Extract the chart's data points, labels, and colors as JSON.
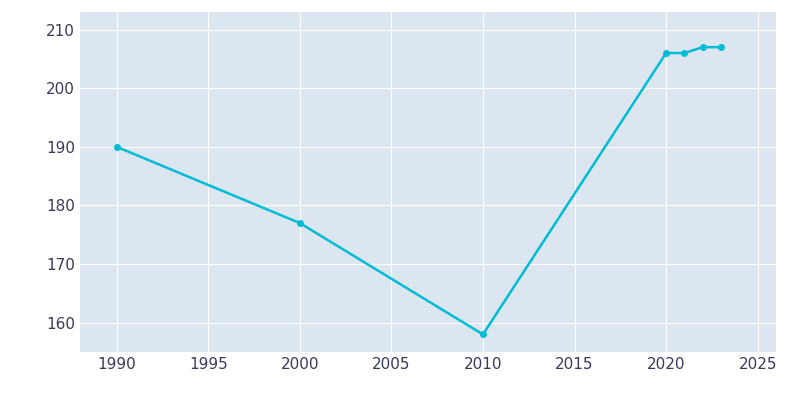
{
  "years": [
    1990,
    2000,
    2010,
    2020,
    2021,
    2022,
    2023
  ],
  "population": [
    190,
    177,
    158,
    206,
    206,
    207,
    207
  ],
  "line_color": "#00BCD4",
  "marker": "o",
  "marker_size": 4,
  "line_width": 1.8,
  "plot_bg_color": "#dce6f0",
  "fig_bg_color": "#ffffff",
  "grid_color": "#ffffff",
  "xlim": [
    1988,
    2026
  ],
  "ylim": [
    155,
    213
  ],
  "xticks": [
    1990,
    1995,
    2000,
    2005,
    2010,
    2015,
    2020,
    2025
  ],
  "yticks": [
    160,
    170,
    180,
    190,
    200,
    210
  ],
  "tick_color": "#3a3a5a",
  "tick_fontsize": 11
}
